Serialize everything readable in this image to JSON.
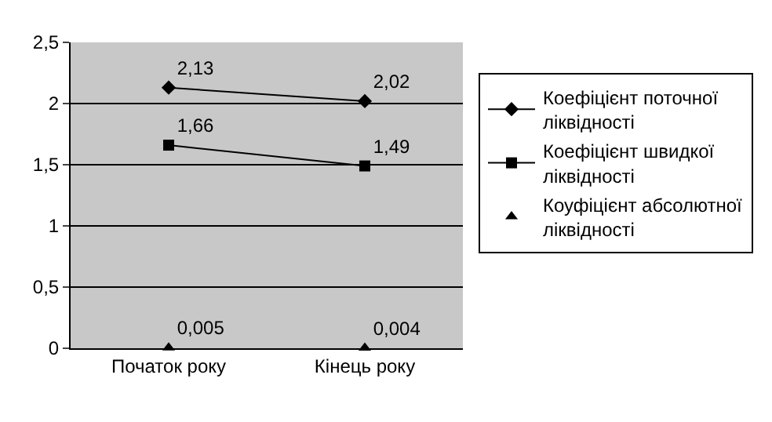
{
  "chart_data": {
    "type": "line",
    "categories": [
      "Початок року",
      "Кінець року"
    ],
    "series": [
      {
        "name": "Коефіцієнт поточної ліквідності",
        "color": "#000000",
        "marker": "diamond",
        "values": [
          2.13,
          2.02
        ],
        "value_labels": [
          "2,13",
          "2,02"
        ]
      },
      {
        "name": "Коефіцієнт швидкої ліквідності",
        "color": "#000000",
        "marker": "square",
        "values": [
          1.66,
          1.49
        ],
        "value_labels": [
          "1,66",
          "1,49"
        ]
      },
      {
        "name": "Коуфіцієнт абсолютної ліквідності",
        "type": "scatter",
        "color": "#000000",
        "marker": "triangle",
        "values": [
          0.005,
          0.004
        ],
        "value_labels": [
          "0,005",
          "0,004"
        ]
      }
    ],
    "ylim": [
      0,
      2.5
    ],
    "yticks": [
      {
        "value": 0,
        "label": "0"
      },
      {
        "value": 0.5,
        "label": "0,5"
      },
      {
        "value": 1,
        "label": "1"
      },
      {
        "value": 1.5,
        "label": "1,5"
      },
      {
        "value": 2,
        "label": "2"
      },
      {
        "value": 2.5,
        "label": "2,5"
      }
    ],
    "grid": "y",
    "legend": "right",
    "line_style": "solid"
  }
}
